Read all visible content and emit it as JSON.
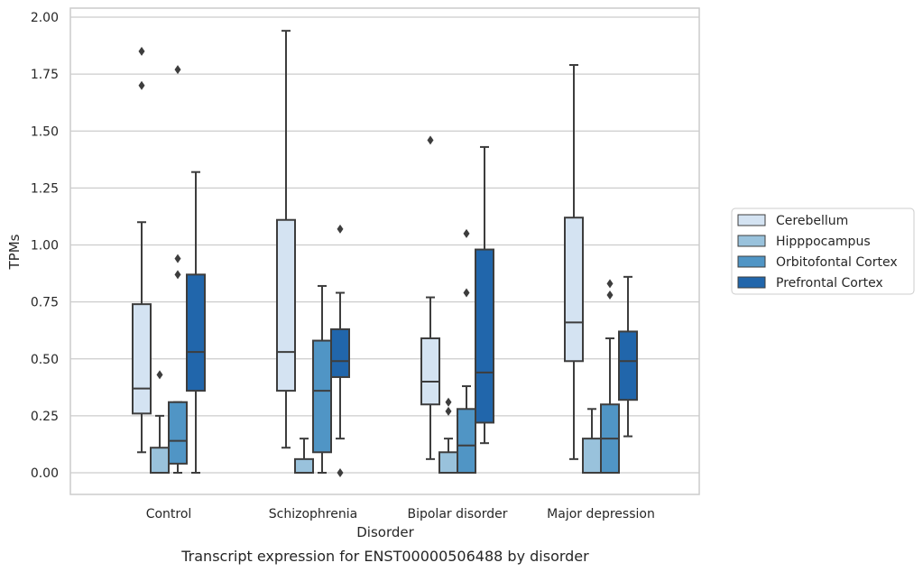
{
  "caption": "Transcript expression for ENST00000506488 by disorder",
  "chart_data": {
    "type": "box",
    "xlabel": "Disorder",
    "ylabel": "TPMs",
    "ylim": [
      -0.1,
      2.04
    ],
    "yticks": [
      "0.00",
      "0.25",
      "0.50",
      "0.75",
      "1.00",
      "1.25",
      "1.50",
      "1.75",
      "2.00"
    ],
    "grid": "horizontal",
    "legend_position": "right",
    "categories": [
      "Control",
      "Schizophrenia",
      "Bipolar disorder",
      "Major depression"
    ],
    "series": [
      {
        "name": "Cerebellum",
        "color": "#d4e3f2",
        "boxes": [
          {
            "whisker_low": 0.09,
            "q1": 0.26,
            "median": 0.37,
            "q3": 0.74,
            "whisker_high": 1.1,
            "outliers": [
              1.7,
              1.85
            ]
          },
          {
            "whisker_low": 0.11,
            "q1": 0.36,
            "median": 0.53,
            "q3": 1.11,
            "whisker_high": 1.94,
            "outliers": []
          },
          {
            "whisker_low": 0.06,
            "q1": 0.3,
            "median": 0.4,
            "q3": 0.59,
            "whisker_high": 0.77,
            "outliers": [
              1.46
            ]
          },
          {
            "whisker_low": 0.06,
            "q1": 0.49,
            "median": 0.66,
            "q3": 1.12,
            "whisker_high": 1.79,
            "outliers": []
          }
        ]
      },
      {
        "name": "Hipppocampus",
        "color": "#99c2dc",
        "boxes": [
          {
            "whisker_low": 0.0,
            "q1": 0.0,
            "median": 0.0,
            "q3": 0.11,
            "whisker_high": 0.25,
            "outliers": [
              0.43
            ]
          },
          {
            "whisker_low": 0.0,
            "q1": 0.0,
            "median": 0.0,
            "q3": 0.06,
            "whisker_high": 0.15,
            "outliers": []
          },
          {
            "whisker_low": 0.0,
            "q1": 0.0,
            "median": 0.0,
            "q3": 0.09,
            "whisker_high": 0.15,
            "outliers": [
              0.27,
              0.31
            ]
          },
          {
            "whisker_low": 0.0,
            "q1": 0.0,
            "median": 0.0,
            "q3": 0.15,
            "whisker_high": 0.28,
            "outliers": []
          }
        ]
      },
      {
        "name": "Orbitofontal Cortex",
        "color": "#5095c5",
        "boxes": [
          {
            "whisker_low": 0.0,
            "q1": 0.04,
            "median": 0.14,
            "q3": 0.31,
            "whisker_high": 0.31,
            "outliers": [
              0.87,
              0.94,
              1.77
            ]
          },
          {
            "whisker_low": 0.0,
            "q1": 0.09,
            "median": 0.36,
            "q3": 0.58,
            "whisker_high": 0.82,
            "outliers": []
          },
          {
            "whisker_low": 0.0,
            "q1": 0.0,
            "median": 0.12,
            "q3": 0.28,
            "whisker_high": 0.38,
            "outliers": [
              0.79,
              1.05
            ]
          },
          {
            "whisker_low": 0.0,
            "q1": 0.0,
            "median": 0.15,
            "q3": 0.3,
            "whisker_high": 0.59,
            "outliers": [
              0.78,
              0.83
            ]
          }
        ]
      },
      {
        "name": "Prefrontal Cortex",
        "color": "#2166ab",
        "boxes": [
          {
            "whisker_low": 0.0,
            "q1": 0.36,
            "median": 0.53,
            "q3": 0.87,
            "whisker_high": 1.32,
            "outliers": []
          },
          {
            "whisker_low": 0.15,
            "q1": 0.42,
            "median": 0.49,
            "q3": 0.63,
            "whisker_high": 0.79,
            "outliers": [
              0.0,
              1.07
            ]
          },
          {
            "whisker_low": 0.13,
            "q1": 0.22,
            "median": 0.44,
            "q3": 0.98,
            "whisker_high": 1.43,
            "outliers": []
          },
          {
            "whisker_low": 0.16,
            "q1": 0.32,
            "median": 0.49,
            "q3": 0.62,
            "whisker_high": 0.86,
            "outliers": []
          }
        ]
      }
    ]
  }
}
